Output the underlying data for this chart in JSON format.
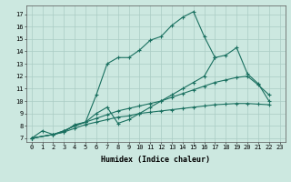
{
  "xlabel": "Humidex (Indice chaleur)",
  "bg_color": "#cce8e0",
  "grid_color": "#aaccc4",
  "line_color": "#1a7060",
  "xlim": [
    -0.5,
    23.5
  ],
  "ylim": [
    6.7,
    17.7
  ],
  "xticks": [
    0,
    1,
    2,
    3,
    4,
    5,
    6,
    7,
    8,
    9,
    10,
    11,
    12,
    13,
    14,
    15,
    16,
    17,
    18,
    19,
    20,
    21,
    22,
    23
  ],
  "yticks": [
    7,
    8,
    9,
    10,
    11,
    12,
    13,
    14,
    15,
    16,
    17
  ],
  "curves": [
    {
      "x": [
        0,
        1,
        2,
        3,
        4,
        5,
        6,
        7,
        8,
        9,
        10,
        11,
        12,
        13,
        14,
        15,
        16,
        17
      ],
      "y": [
        7,
        7.6,
        7.3,
        7.5,
        8.1,
        8.3,
        10.5,
        13.0,
        13.5,
        13.5,
        14.1,
        14.9,
        15.2,
        16.1,
        16.75,
        17.2,
        15.2,
        13.5
      ]
    },
    {
      "x": [
        0,
        2,
        3,
        4,
        5,
        6,
        7,
        8,
        9,
        10,
        11,
        12,
        13,
        14,
        15,
        16,
        17,
        18,
        19,
        20,
        21,
        22
      ],
      "y": [
        7.0,
        7.3,
        7.6,
        8.0,
        8.3,
        9.0,
        9.5,
        8.2,
        8.5,
        9.0,
        9.5,
        10.0,
        10.5,
        11.0,
        11.5,
        12.0,
        13.5,
        13.7,
        14.3,
        12.2,
        11.4,
        10.0
      ]
    },
    {
      "x": [
        0,
        2,
        3,
        4,
        5,
        6,
        7,
        8,
        9,
        10,
        11,
        12,
        13,
        14,
        15,
        16,
        17,
        18,
        19,
        20,
        21,
        22
      ],
      "y": [
        7.0,
        7.3,
        7.6,
        8.0,
        8.3,
        8.6,
        8.9,
        9.2,
        9.4,
        9.6,
        9.8,
        10.0,
        10.3,
        10.6,
        10.9,
        11.2,
        11.5,
        11.7,
        11.9,
        12.0,
        11.3,
        10.5
      ]
    },
    {
      "x": [
        0,
        2,
        3,
        4,
        5,
        6,
        7,
        8,
        9,
        10,
        11,
        12,
        13,
        14,
        15,
        16,
        17,
        18,
        19,
        20,
        21,
        22
      ],
      "y": [
        7.0,
        7.3,
        7.5,
        7.8,
        8.1,
        8.3,
        8.5,
        8.7,
        8.8,
        9.0,
        9.1,
        9.2,
        9.3,
        9.4,
        9.5,
        9.6,
        9.7,
        9.75,
        9.8,
        9.8,
        9.75,
        9.7
      ]
    }
  ],
  "marker": "+",
  "markersize": 3,
  "linewidth": 0.8,
  "tick_fontsize": 5.0,
  "xlabel_fontsize": 6.0
}
